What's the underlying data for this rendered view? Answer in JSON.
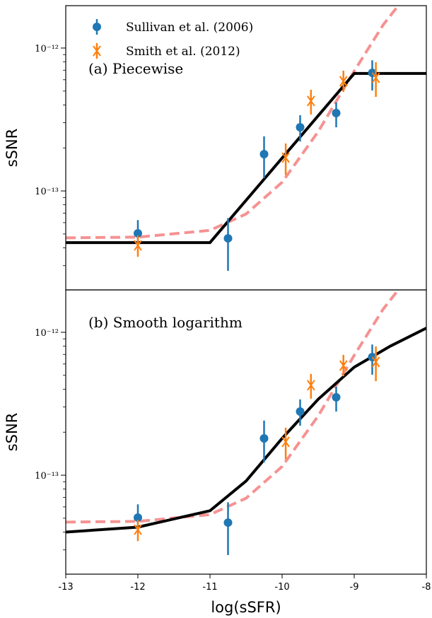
{
  "chart_data": [
    {
      "type": "errorbar",
      "ylabel": "sSNR",
      "annotation": "(a) Piecewise",
      "log_y": true,
      "xlim": [
        -13,
        -8
      ],
      "ylim": [
        2.03e-14,
        1.98e-12
      ],
      "yticks": [
        {
          "value": 1e-13,
          "label": "10⁻¹³"
        },
        {
          "value": 1e-12,
          "label": "10⁻¹²"
        }
      ],
      "yminor_ticks": [
        3e-14,
        4e-14,
        5e-14,
        6e-14,
        7e-14,
        8e-14,
        9e-14,
        2e-13,
        3e-13,
        4e-13,
        5e-13,
        6e-13,
        7e-13,
        8e-13,
        9e-13
      ],
      "legend": "upper left",
      "series": [
        {
          "name": "Sullivan et al. (2006)",
          "kind": "errorbar",
          "marker": "o",
          "color": "#1f77b4",
          "x": [
            -12.0,
            -10.75,
            -10.25,
            -9.75,
            -9.25,
            -8.75
          ],
          "values": [
            5.05e-14,
            4.66e-14,
            1.81e-13,
            2.79e-13,
            3.51e-13,
            6.71e-13
          ],
          "err_low": [
            1e-14,
            1.9e-14,
            5.8e-14,
            5.7e-14,
            7.2e-14,
            1.66e-13
          ],
          "err_high": [
            1.2e-14,
            1.8e-14,
            6e-14,
            6e-14,
            6.5e-14,
            1.5e-13
          ]
        },
        {
          "name": "Smith et al. (2012)",
          "kind": "errorbar",
          "marker": "x",
          "color": "#ff7f0e",
          "x": [
            -12.0,
            -9.95,
            -9.6,
            -9.15,
            -8.7
          ],
          "values": [
            4.16e-14,
            1.71e-13,
            4.26e-13,
            5.85e-13,
            6.2e-13
          ],
          "err_low": [
            7e-15,
            4.2e-14,
            8.3e-14,
            9.2e-14,
            1.65e-13
          ],
          "err_high": [
            7e-15,
            4.4e-14,
            8.5e-14,
            1.1e-13,
            1.76e-13
          ]
        },
        {
          "kind": "line",
          "dashed": true,
          "color": "#f47f7f",
          "x": [
            -13,
            -12,
            -11,
            -10.5,
            -10,
            -9.5,
            -9,
            -8.6,
            -8.35
          ],
          "values": [
            4.7e-14,
            4.75e-14,
            5.3e-14,
            6.9e-14,
            1.15e-13,
            2.6e-13,
            6.9e-13,
            1.45e-12,
            2.1e-12
          ]
        },
        {
          "kind": "line",
          "dashed": false,
          "color": "#000000",
          "x": [
            -13,
            -11,
            -9,
            -8
          ],
          "values": [
            4.35e-14,
            4.35e-14,
            6.64e-13,
            6.64e-13
          ]
        }
      ]
    },
    {
      "type": "errorbar",
      "ylabel": "sSNR",
      "annotation": "(b) Smooth logarithm",
      "xlabel": "log(sSFR)",
      "log_y": true,
      "xlim": [
        -13,
        -8
      ],
      "ylim": [
        2.03e-14,
        1.98e-12
      ],
      "xticks": [
        -13,
        -12,
        -11,
        -10,
        -9,
        -8
      ],
      "yticks": [
        {
          "value": 1e-13,
          "label": "10⁻¹³"
        },
        {
          "value": 1e-12,
          "label": "10⁻¹²"
        }
      ],
      "yminor_ticks": [
        3e-14,
        4e-14,
        5e-14,
        6e-14,
        7e-14,
        8e-14,
        9e-14,
        2e-13,
        3e-13,
        4e-13,
        5e-13,
        6e-13,
        7e-13,
        8e-13,
        9e-13
      ],
      "series": [
        {
          "kind": "errorbar",
          "marker": "o",
          "color": "#1f77b4",
          "x": [
            -12.0,
            -10.75,
            -10.25,
            -9.75,
            -9.25,
            -8.75
          ],
          "values": [
            5.05e-14,
            4.66e-14,
            1.81e-13,
            2.79e-13,
            3.51e-13,
            6.71e-13
          ],
          "err_low": [
            1e-14,
            1.9e-14,
            5.8e-14,
            5.7e-14,
            7.2e-14,
            1.66e-13
          ],
          "err_high": [
            1.2e-14,
            1.8e-14,
            6e-14,
            6e-14,
            6.5e-14,
            1.5e-13
          ]
        },
        {
          "kind": "errorbar",
          "marker": "x",
          "color": "#ff7f0e",
          "x": [
            -12.0,
            -9.95,
            -9.6,
            -9.15,
            -8.7
          ],
          "values": [
            4.16e-14,
            1.71e-13,
            4.26e-13,
            5.85e-13,
            6.2e-13
          ],
          "err_low": [
            7e-15,
            4.2e-14,
            8.3e-14,
            9.2e-14,
            1.65e-13
          ],
          "err_high": [
            7e-15,
            4.4e-14,
            8.5e-14,
            1.1e-13,
            1.76e-13
          ]
        },
        {
          "kind": "line",
          "dashed": true,
          "color": "#f47f7f",
          "x": [
            -13,
            -12,
            -11,
            -10.5,
            -10,
            -9.5,
            -9,
            -8.6,
            -8.35
          ],
          "values": [
            4.7e-14,
            4.75e-14,
            5.3e-14,
            6.9e-14,
            1.15e-13,
            2.6e-13,
            6.9e-13,
            1.45e-12,
            2.1e-12
          ]
        },
        {
          "kind": "line",
          "dashed": false,
          "color": "#000000",
          "x": [
            -13,
            -12,
            -11,
            -10.5,
            -10,
            -9.5,
            -9,
            -8.5,
            -8
          ],
          "values": [
            4e-14,
            4.33e-14,
            5.64e-14,
            9.1e-14,
            1.81e-13,
            3.4e-13,
            5.7e-13,
            8e-13,
            1.07e-12
          ]
        }
      ]
    }
  ]
}
